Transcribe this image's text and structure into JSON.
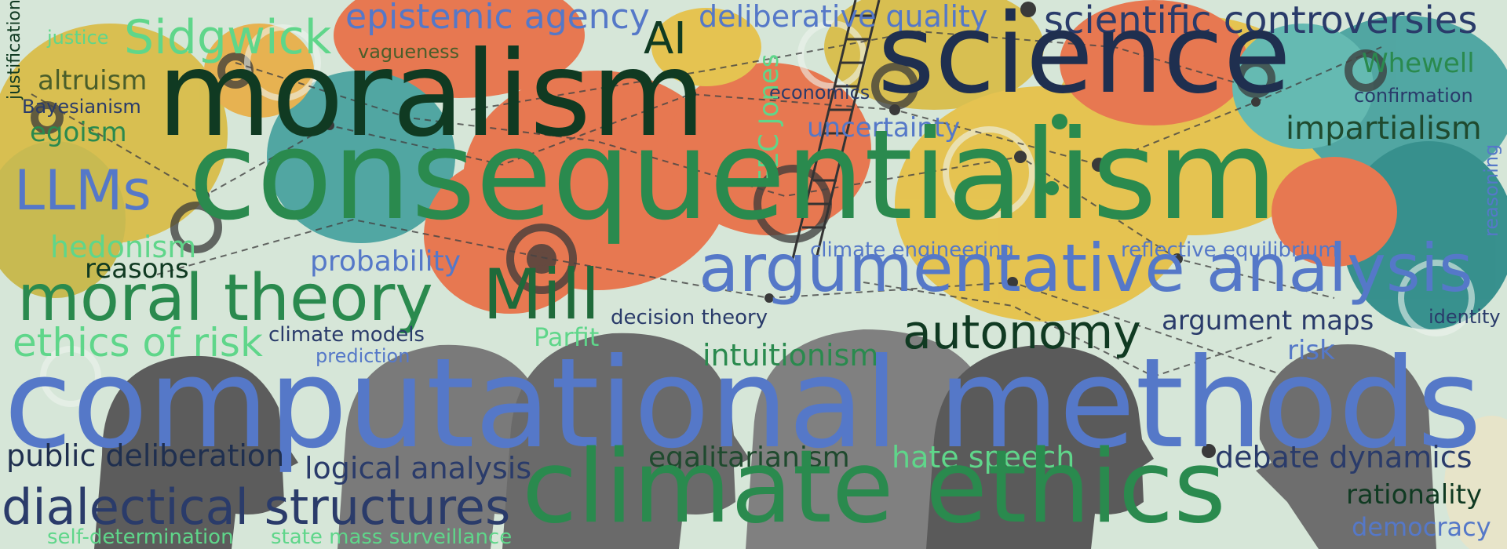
{
  "words": {
    "justification": "justification",
    "justice": "justice",
    "sidgwick": "Sidgwick",
    "epistemic_agency": "epistemic agency",
    "deliberative_quality": "deliberative quality",
    "scientific_controversies": "scientific controversies",
    "vagueness": "vagueness",
    "ai": "AI",
    "moralism": "moralism",
    "science": "science",
    "whewell": "Whewell",
    "altruism": "altruism",
    "bayesianism": "Bayesianism",
    "economics": "economics",
    "confirmation": "confirmation",
    "eec_jones": "EEC Jones",
    "egoism": "egoism",
    "uncertainty": "uncertainty",
    "impartialism": "impartialism",
    "llms": "LLMs",
    "consequentialism": "consequentialism",
    "reasoning": "reasoning",
    "hedonism": "hedonism",
    "climate_engineering": "climate engineering",
    "reflective_equilibrium": "reflective equilibrium",
    "reasons": "reasons",
    "probability": "probability",
    "moral_theory": "moral theory",
    "mill": "Mill",
    "argumentative_analysis": "argumentative analysis",
    "decision_theory": "decision theory",
    "argument_maps": "argument maps",
    "identity": "identity",
    "ethics_of_risk": "ethics of risk",
    "climate_models": "climate models",
    "parfit": "Parfit",
    "autonomy": "autonomy",
    "prediction": "prediction",
    "risk": "risk",
    "intuitionism": "intuitionism",
    "computational_methods": "computational methods",
    "public_deliberation": "public deliberation",
    "egalitarianism": "egalitarianism",
    "hate_speech": "hate speech",
    "debate_dynamics": "debate dynamics",
    "logical_analysis": "logical analysis",
    "rationality": "rationality",
    "dialectical_structures": "dialectical structures",
    "climate_ethics": "climate ethics",
    "democracy": "democracy",
    "self_determination": "self-determination",
    "state_mass_surveillance": "state mass surveillance"
  },
  "palette": {
    "background": "#d6e6d8",
    "dark_green": "#103a22",
    "green": "#2a8a4e",
    "light_green": "#5fd68a",
    "blue": "#5578c8",
    "navy": "#1f2f4f",
    "olive": "#4a5e2a",
    "orange_bubble": "#e8734a",
    "yellow_bubble": "#e6c24a",
    "teal_bubble": "#4aa3a0",
    "head_gray": "#6d6d6d"
  }
}
